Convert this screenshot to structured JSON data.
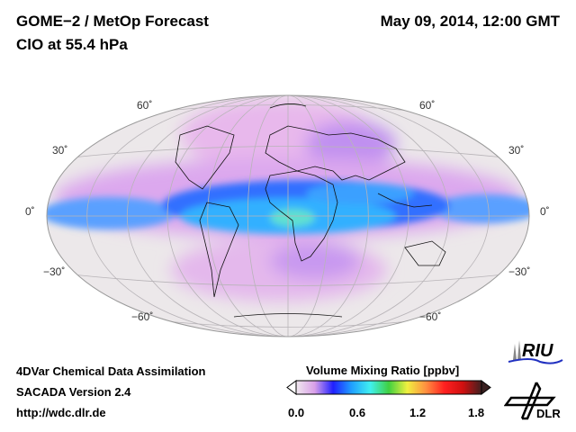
{
  "header": {
    "title": "GOME−2 / MetOp Forecast",
    "subtitle": "ClO at 55.4 hPa",
    "datetime": "May 09, 2014, 12:00 GMT"
  },
  "map": {
    "lat_labels_left": [
      "60˚",
      "30˚",
      "0˚",
      "−30˚",
      "−60˚"
    ],
    "lat_labels_right": [
      "60˚",
      "30˚",
      "0˚",
      "−30˚",
      "−60˚"
    ],
    "background_color": "#ece8ea"
  },
  "footer": {
    "line1": "4DVar Chemical Data Assimilation",
    "line2": "SACADA Version 2.4",
    "line3": "http://wdc.dlr.de"
  },
  "colorbar": {
    "title": "Volume Mixing Ratio [ppbv]",
    "min": 0.0,
    "max": 1.8,
    "ticks": [
      "0.0",
      "0.6",
      "1.2",
      "1.8"
    ],
    "colors": [
      "#f0e8ee",
      "#d9a0e8",
      "#2020ff",
      "#20a0ff",
      "#40f0f0",
      "#40d040",
      "#f0f040",
      "#ff9040",
      "#ff2020",
      "#d01010",
      "#402020"
    ]
  },
  "logos": {
    "riu": "RIU",
    "dlr": "DLR"
  }
}
